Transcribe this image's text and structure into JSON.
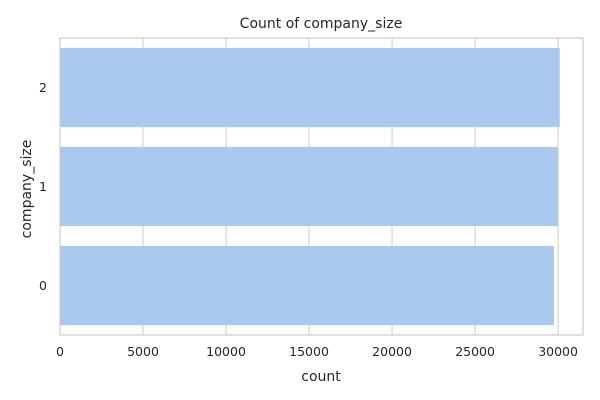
{
  "chart_data": {
    "type": "bar",
    "orientation": "horizontal",
    "title": "Count of company_size",
    "xlabel": "count",
    "ylabel": "company_size",
    "categories": [
      "2",
      "1",
      "0"
    ],
    "values": [
      30100,
      30000,
      29750
    ],
    "xlim": [
      0,
      31500
    ],
    "xticks": [
      0,
      5000,
      10000,
      15000,
      20000,
      25000,
      30000
    ],
    "grid": true,
    "legend": "none",
    "bar_color": "#abc9ee",
    "grid_color": "#cccccc",
    "frame_color": "#cccccc"
  }
}
